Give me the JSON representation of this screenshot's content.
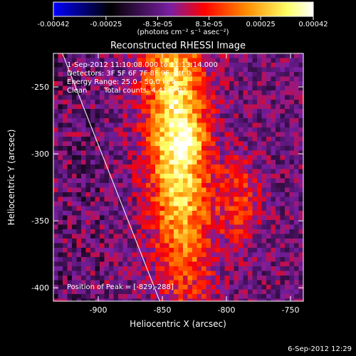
{
  "colorbar": {
    "ticks": [
      "-0.00042",
      "-0.00025",
      "-8.3e-05",
      "8.3e-05",
      "0.00025",
      "0.00042"
    ],
    "tick_values": [
      -0.00042,
      -0.00025,
      -8.3e-05,
      8.3e-05,
      0.00025,
      0.00042
    ],
    "range": [
      -0.00042,
      0.00042
    ],
    "unit_label": "(photons cm⁻² s⁻¹ asec⁻²)",
    "colors": [
      "#0000ff",
      "#000000",
      "#7a1fa3",
      "#ff0000",
      "#ff8a00",
      "#ffff66",
      "#ffffff"
    ]
  },
  "chart_data": {
    "type": "heatmap",
    "title": "Reconstructed RHESSI Image",
    "xlabel": "Heliocentric X (arcsec)",
    "ylabel": "Heliocentric Y (arcsec)",
    "xlim": [
      -935,
      -740
    ],
    "ylim": [
      -410,
      -225
    ],
    "xticks": [
      -900,
      -850,
      -800,
      -750
    ],
    "yticks": [
      -250,
      -300,
      -350,
      -400
    ],
    "limb_line": [
      [
        -928,
        -225
      ],
      [
        -852,
        -410
      ]
    ],
    "peak": {
      "x": -829,
      "y": -288
    },
    "grid": false
  },
  "annotations": {
    "time_range": "1-Sep-2012 11:10:08.000 to 11:13:14.000",
    "detectors": "Detectors: 3F 5F 6F 7F 8F 9F, Att 0",
    "energy": "Energy Range: 25.0 - 50.0 keV",
    "clean": "Clean",
    "counts": "Total counts: 4.41e+03",
    "peak": "Position of Peak = [-829,-288]"
  },
  "footer": {
    "date": "6-Sep-2012 12:29"
  }
}
